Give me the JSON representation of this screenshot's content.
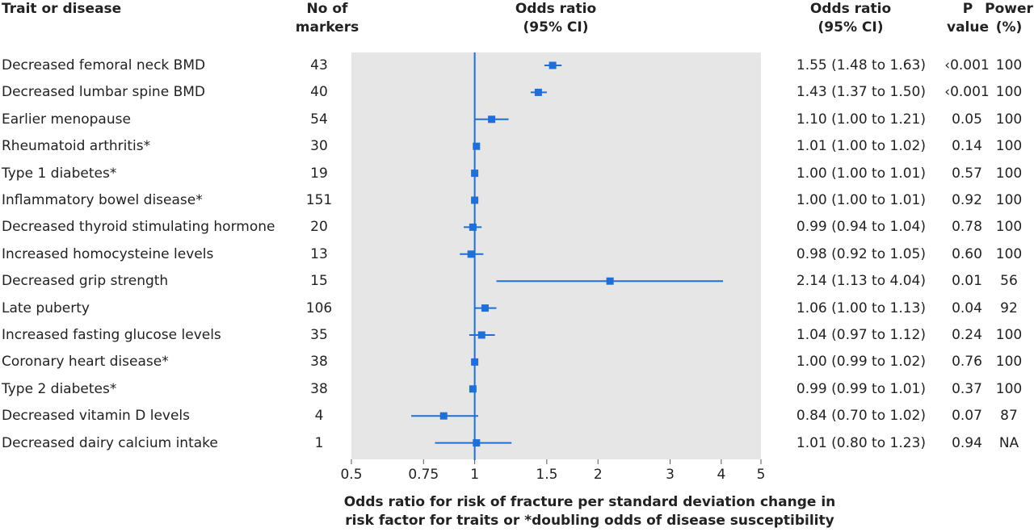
{
  "headers": {
    "trait": "Trait or disease",
    "markers_line1": "No of",
    "markers_line2": "markers",
    "or_plot_line1": "Odds ratio",
    "or_plot_line2": "(95% CI)",
    "or_text_line1": "Odds ratio",
    "or_text_line2": "(95% CI)",
    "p_line1": "P",
    "p_line2": "value",
    "power_line1": "Power",
    "power_line2": "(%)"
  },
  "rows": [
    {
      "label": "Decreased femoral neck BMD",
      "markers": "43",
      "or_text": "1.55 (1.48 to 1.63)",
      "p": "‹0.001",
      "power": "100"
    },
    {
      "label": "Decreased lumbar spine BMD",
      "markers": "40",
      "or_text": "1.43 (1.37 to 1.50)",
      "p": "‹0.001",
      "power": "100"
    },
    {
      "label": "Earlier menopause",
      "markers": "54",
      "or_text": "1.10 (1.00 to 1.21)",
      "p": "0.05",
      "power": "100"
    },
    {
      "label": "Rheumatoid arthritis*",
      "markers": "30",
      "or_text": "1.01 (1.00 to 1.02)",
      "p": "0.14",
      "power": "100"
    },
    {
      "label": "Type 1 diabetes*",
      "markers": "19",
      "or_text": "1.00 (1.00 to 1.01)",
      "p": "0.57",
      "power": "100"
    },
    {
      "label": "Inflammatory bowel disease*",
      "markers": "151",
      "or_text": "1.00 (1.00 to 1.01)",
      "p": "0.92",
      "power": "100"
    },
    {
      "label": "Decreased thyroid stimulating hormone",
      "markers": "20",
      "or_text": "0.99 (0.94 to 1.04)",
      "p": "0.78",
      "power": "100"
    },
    {
      "label": "Increased homocysteine levels",
      "markers": "13",
      "or_text": "0.98 (0.92 to 1.05)",
      "p": "0.60",
      "power": "100"
    },
    {
      "label": "Decreased grip strength",
      "markers": "15",
      "or_text": "2.14 (1.13 to 4.04)",
      "p": "0.01",
      "power": "56"
    },
    {
      "label": "Late puberty",
      "markers": "106",
      "or_text": "1.06 (1.00 to 1.13)",
      "p": "0.04",
      "power": "92"
    },
    {
      "label": "Increased fasting glucose levels",
      "markers": "35",
      "or_text": "1.04 (0.97 to 1.12)",
      "p": "0.24",
      "power": "100"
    },
    {
      "label": "Coronary heart disease*",
      "markers": "38",
      "or_text": "1.00 (0.99 to 1.02)",
      "p": "0.76",
      "power": "100"
    },
    {
      "label": "Type 2 diabetes*",
      "markers": "38",
      "or_text": "0.99 (0.99 to 1.01)",
      "p": "0.37",
      "power": "100"
    },
    {
      "label": "Decreased vitamin D levels",
      "markers": "4",
      "or_text": "0.84 (0.70 to 1.02)",
      "p": "0.07",
      "power": "87"
    },
    {
      "label": "Decreased dairy calcium intake",
      "markers": "1",
      "or_text": "1.01 (0.80 to 1.23)",
      "p": "0.94",
      "power": "NA"
    }
  ],
  "chart_data": {
    "type": "forest",
    "x_scale": "log",
    "xlim": [
      0.5,
      5
    ],
    "reference_line": 1,
    "x_ticks": [
      {
        "value": 0.5,
        "label": "0.5"
      },
      {
        "value": 0.75,
        "label": "0.75"
      },
      {
        "value": 1,
        "label": "1"
      },
      {
        "value": 1.5,
        "label": "1.5"
      },
      {
        "value": 2,
        "label": "2"
      },
      {
        "value": 3,
        "label": "3"
      },
      {
        "value": 4,
        "label": "4"
      },
      {
        "value": 5,
        "label": "5"
      }
    ],
    "xlabel_line1": "Odds ratio for risk of fracture per standard deviation change in",
    "xlabel_line2": "risk factor for traits or *doubling odds of disease susceptibility",
    "estimates": [
      {
        "or": 1.55,
        "lo": 1.48,
        "hi": 1.63
      },
      {
        "or": 1.43,
        "lo": 1.37,
        "hi": 1.5
      },
      {
        "or": 1.1,
        "lo": 1.0,
        "hi": 1.21
      },
      {
        "or": 1.01,
        "lo": 1.0,
        "hi": 1.02
      },
      {
        "or": 1.0,
        "lo": 1.0,
        "hi": 1.01
      },
      {
        "or": 1.0,
        "lo": 1.0,
        "hi": 1.01
      },
      {
        "or": 0.99,
        "lo": 0.94,
        "hi": 1.04
      },
      {
        "or": 0.98,
        "lo": 0.92,
        "hi": 1.05
      },
      {
        "or": 2.14,
        "lo": 1.13,
        "hi": 4.04
      },
      {
        "or": 1.06,
        "lo": 1.0,
        "hi": 1.13
      },
      {
        "or": 1.04,
        "lo": 0.97,
        "hi": 1.12
      },
      {
        "or": 1.0,
        "lo": 0.99,
        "hi": 1.02
      },
      {
        "or": 0.99,
        "lo": 0.99,
        "hi": 1.01
      },
      {
        "or": 0.84,
        "lo": 0.7,
        "hi": 1.02
      },
      {
        "or": 1.01,
        "lo": 0.8,
        "hi": 1.23
      }
    ],
    "colors": {
      "marker": "#1f6fd6",
      "panel": "#e6e6e6",
      "text": "#222222"
    }
  }
}
